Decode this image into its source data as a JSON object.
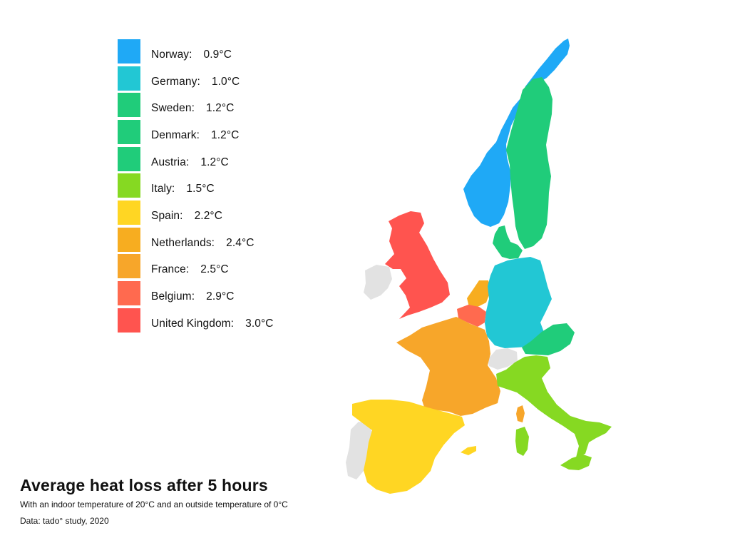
{
  "title": "Average heat loss after 5 hours",
  "subtitle": "With an indoor temperature of 20°C and an outside temperature of 0°C",
  "source": "Data: tado° study, 2020",
  "colors": {
    "no_data": "#e2e2e2",
    "Norway": "#1fa9f6",
    "Germany": "#22c7d4",
    "Sweden": "#20cc7a",
    "Denmark": "#20cc7a",
    "Austria": "#20cc7a",
    "Italy": "#86d922",
    "Spain": "#ffd623",
    "Netherlands": "#f7ad20",
    "France": "#f7a62a",
    "Belgium": "#ff6a4f",
    "United Kingdom": "#ff544f"
  },
  "legend": [
    {
      "country": "Norway",
      "label": "Norway:",
      "value": "0.9°C",
      "color": "#1fa9f6"
    },
    {
      "country": "Germany",
      "label": "Germany:",
      "value": "1.0°C",
      "color": "#22c7d4"
    },
    {
      "country": "Sweden",
      "label": "Sweden:",
      "value": "1.2°C",
      "color": "#20cc7a"
    },
    {
      "country": "Denmark",
      "label": "Denmark:",
      "value": "1.2°C",
      "color": "#20cc7a"
    },
    {
      "country": "Austria",
      "label": "Austria:",
      "value": "1.2°C",
      "color": "#20cc7a"
    },
    {
      "country": "Italy",
      "label": "Italy:",
      "value": "1.5°C",
      "color": "#86d922"
    },
    {
      "country": "Spain",
      "label": "Spain:",
      "value": "2.2°C",
      "color": "#ffd623"
    },
    {
      "country": "Netherlands",
      "label": "Netherlands:",
      "value": "2.4°C",
      "color": "#f7ad20"
    },
    {
      "country": "France",
      "label": "France:",
      "value": "2.5°C",
      "color": "#f7a62a"
    },
    {
      "country": "Belgium",
      "label": "Belgium:",
      "value": "2.9°C",
      "color": "#ff6a4f"
    },
    {
      "country": "United Kingdom",
      "label": "United Kingdom:",
      "value": "3.0°C",
      "color": "#ff544f"
    }
  ]
}
